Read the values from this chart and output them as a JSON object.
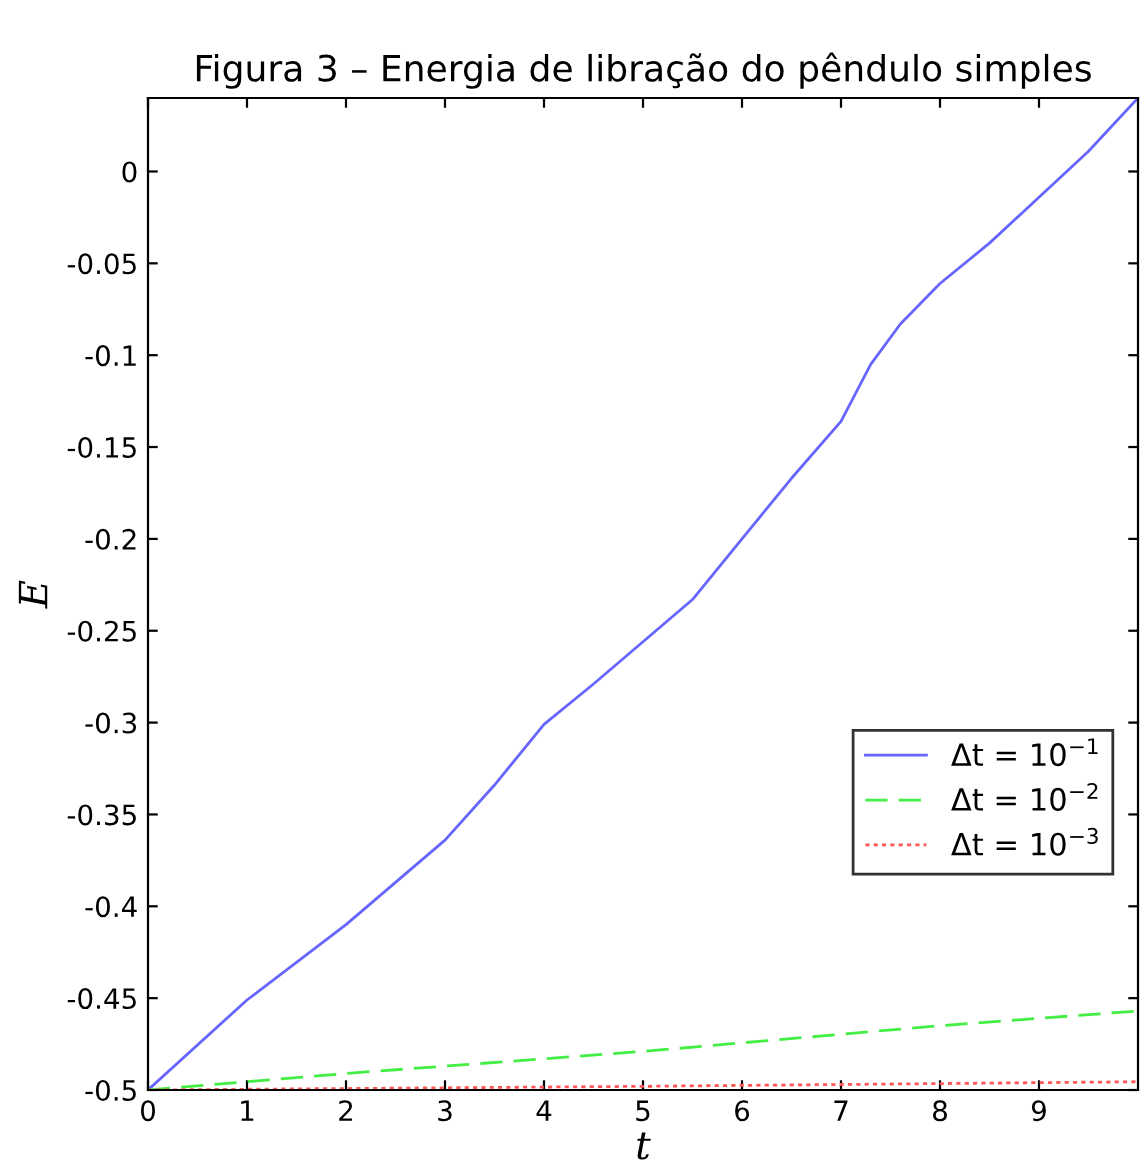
{
  "chart_data": {
    "type": "line",
    "title": "Figura 3 – Energia de libração do pêndulo simples",
    "xlabel": "t",
    "ylabel": "E",
    "xlim": [
      0,
      10
    ],
    "ylim": [
      -0.5,
      0.04
    ],
    "xticks": [
      0,
      1,
      2,
      3,
      4,
      5,
      6,
      7,
      8,
      9
    ],
    "yticks": [
      -0.5,
      -0.45,
      -0.4,
      -0.35,
      -0.3,
      -0.25,
      -0.2,
      -0.15,
      -0.1,
      -0.05,
      0
    ],
    "legend": "right",
    "grid": false,
    "series": [
      {
        "name": "Δt = 10$^{−1}$",
        "color": "#6666ff",
        "line_style": "solid",
        "x": [
          0,
          1,
          2,
          3,
          3.5,
          4,
          4.5,
          5,
          5.5,
          6,
          6.5,
          7,
          7.3,
          7.6,
          8,
          8.5,
          9,
          9.5,
          10
        ],
        "values": [
          -0.5,
          -0.451,
          -0.41,
          -0.364,
          -0.334,
          -0.301,
          -0.279,
          -0.256,
          -0.233,
          -0.2,
          -0.167,
          -0.136,
          -0.105,
          -0.083,
          -0.061,
          -0.039,
          -0.014,
          0.011,
          0.04
        ]
      },
      {
        "name": "Δt = 10$^{−2}$",
        "color": "#44ee44",
        "line_style": "dashed",
        "x": [
          0,
          2,
          5,
          8,
          10
        ],
        "values": [
          -0.5,
          -0.491,
          -0.479,
          -0.465,
          -0.457
        ]
      },
      {
        "name": "Δt = 10$^{−3}$",
        "color": "#ff5555",
        "line_style": "dotted",
        "x": [
          0,
          5,
          10
        ],
        "values": [
          -0.5,
          -0.498,
          -0.4955
        ]
      }
    ]
  }
}
